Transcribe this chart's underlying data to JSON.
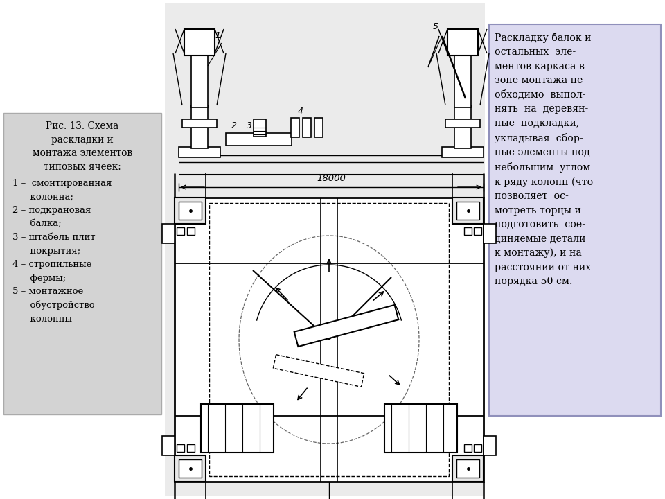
{
  "bg_color": "#ffffff",
  "left_box_color": "#d3d3d3",
  "right_box_color": "#dcdaf0",
  "left_box_border": "#aaaaaa",
  "right_box_border": "#9090bb",
  "left_box_text_title": "Рис. 13. Схема\nраскладки и\nмонтажа элементов\nтиповых ячеек:",
  "left_box_text_items": "1 –  смонтированная\n      колонна;\n2 – подкрановая\n      балка;\n3 – штабель плит\n      покрытия;\n4 – стропильные\n      фермы;\n5 – монтажное\n      обустройство\n      колонны",
  "right_box_text": "Раскладку балок и\nостальных  эле-\nментов каркаса в\nзоне монтажа не-\nобходимо  выпол-\nнять  на  деревян-\nные  подкладки,\nукладывая  сбор-\nные элементы под\nнебольшим  углом\nк ряду колонн (что\nпозволяет  ос-\nмотреть торцы и\nподготовить  сое-\nдиняемые детали\nк монтажу), и на\nрасстоянии от них\nпорядка 50 см.",
  "dim_text": "18000",
  "draw_bg": "#ebebeb",
  "lc": "#000000"
}
